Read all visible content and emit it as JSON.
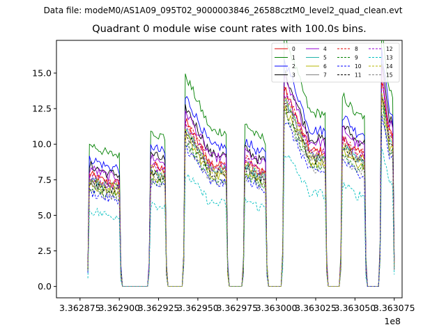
{
  "chart_data": {
    "type": "line",
    "suptitle": "Data file: modeM0/AS1A09_095T02_9000003846_26588cztM0_level2_quad_clean.evt",
    "title": "Quadrant 0 module wise count rates with 100.0s bins.",
    "xlabel": "",
    "ylabel": "",
    "x_offset_label": "1e8",
    "xlim": [
      336286000.0,
      336308000.0
    ],
    "ylim": [
      -0.8,
      17.3
    ],
    "xticks": [
      336287500.0,
      336290000.0,
      336292500.0,
      336295000.0,
      336297500.0,
      336300000.0,
      336302500.0,
      336305000.0,
      336307500.0
    ],
    "xtick_labels": [
      "3.362875",
      "3.362900",
      "3.362925",
      "3.362950",
      "3.362975",
      "3.363000",
      "3.363025",
      "3.363050",
      "3.363075"
    ],
    "yticks": [
      0,
      2.5,
      5.0,
      7.5,
      10.0,
      12.5,
      15.0
    ],
    "ytick_labels": [
      "0.0",
      "2.5",
      "5.0",
      "7.5",
      "10.0",
      "12.5",
      "15.0"
    ],
    "bin_width_s": 100,
    "x_start": 336288000.0,
    "x_end": 336307500.0,
    "orbit_segments": [
      {
        "start": 336288000.0,
        "end": 336290100.0
      },
      {
        "start": 336291900.0,
        "end": 336293000.0
      },
      {
        "start": 336294100.0,
        "end": 336296900.0
      },
      {
        "start": 336297900.0,
        "end": 336299400.0
      },
      {
        "start": 336300400.0,
        "end": 336303200.0
      },
      {
        "start": 336304100.0,
        "end": 336305700.0
      },
      {
        "start": 336306600.0,
        "end": 336307500.0
      }
    ],
    "segment_peak_factor": [
      1.0,
      1.1,
      1.5,
      1.15,
      1.8,
      1.35,
      1.95
    ],
    "segment_decay": [
      0.08,
      0.05,
      0.28,
      0.1,
      0.33,
      0.12,
      0.3
    ],
    "legend_position": "upper right",
    "legend_ncol": 4,
    "series": [
      {
        "name": "0",
        "color": "#e00000",
        "dash": "solid",
        "base": 7.9
      },
      {
        "name": "1",
        "color": "#008000",
        "dash": "solid",
        "base": 10.1
      },
      {
        "name": "2",
        "color": "#0000ff",
        "dash": "solid",
        "base": 9.1
      },
      {
        "name": "3",
        "color": "#000000",
        "dash": "solid",
        "base": 8.6
      },
      {
        "name": "4",
        "color": "#9400d3",
        "dash": "solid",
        "base": 8.4
      },
      {
        "name": "5",
        "color": "#20b2aa",
        "dash": "solid",
        "base": 7.6
      },
      {
        "name": "6",
        "color": "#b5b500",
        "dash": "solid",
        "base": 7.2
      },
      {
        "name": "7",
        "color": "#808080",
        "dash": "solid",
        "base": 7.5
      },
      {
        "name": "8",
        "color": "#e00000",
        "dash": "dashed",
        "base": 7.9
      },
      {
        "name": "9",
        "color": "#008000",
        "dash": "dashed",
        "base": 7.0
      },
      {
        "name": "10",
        "color": "#0000ff",
        "dash": "dashed",
        "base": 6.7
      },
      {
        "name": "11",
        "color": "#000000",
        "dash": "dashed",
        "base": 7.4
      },
      {
        "name": "12",
        "color": "#9400d3",
        "dash": "dashed",
        "base": 7.8
      },
      {
        "name": "13",
        "color": "#00bfbf",
        "dash": "dashed",
        "base": 5.4
      },
      {
        "name": "14",
        "color": "#b5b500",
        "dash": "dashed",
        "base": 7.6
      },
      {
        "name": "15",
        "color": "#808080",
        "dash": "dashed",
        "base": 6.9
      }
    ]
  }
}
